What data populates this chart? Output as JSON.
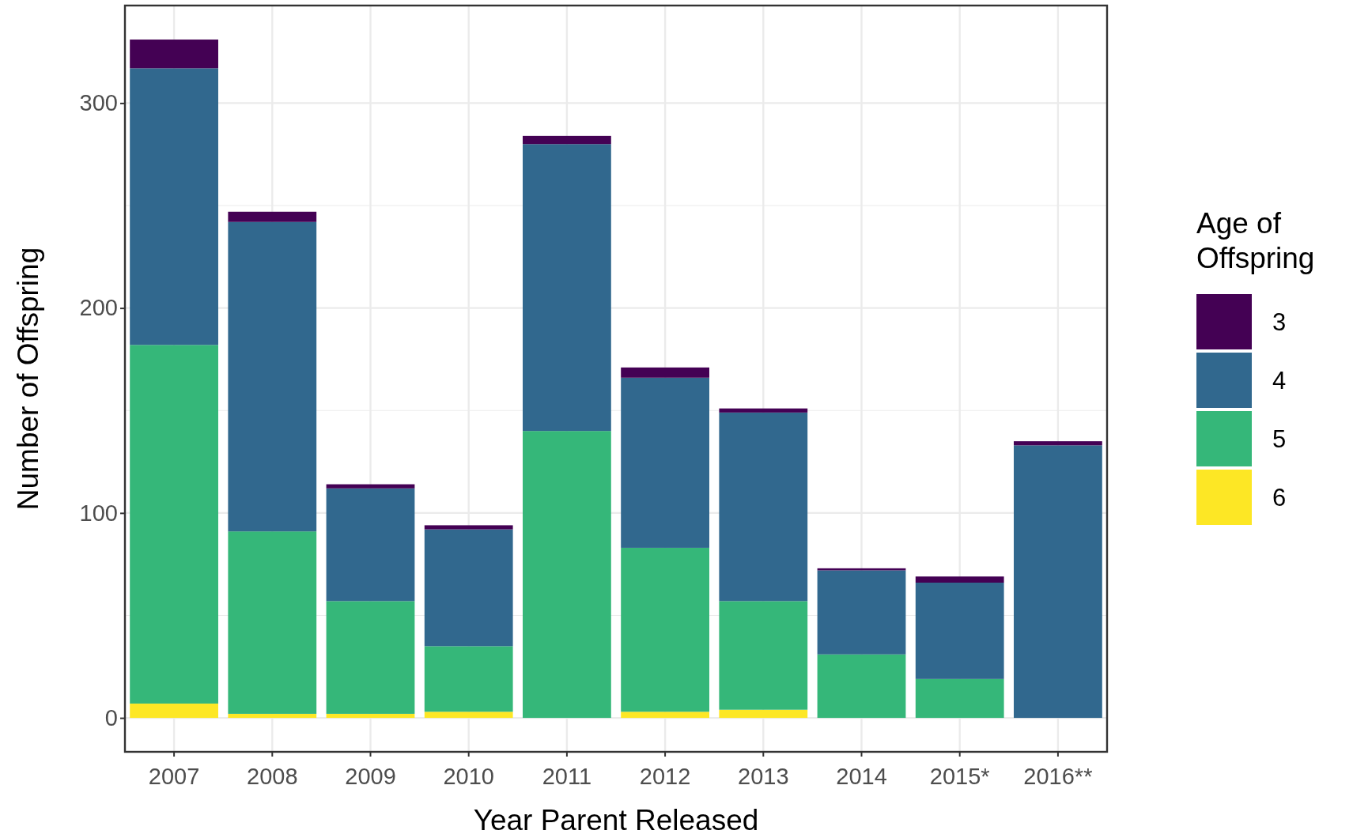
{
  "chart_data": {
    "type": "bar",
    "stacked": true,
    "xlabel": "Year Parent Released",
    "ylabel": "Number of Offspring",
    "legend_title": "Age of Offspring",
    "legend": "right",
    "categories": [
      "2007",
      "2008",
      "2009",
      "2010",
      "2011",
      "2012",
      "2013",
      "2014",
      "2015*",
      "2016**"
    ],
    "series": [
      {
        "name": "6",
        "color": "#fde725",
        "values": [
          7,
          2,
          2,
          3,
          0,
          3,
          4,
          0,
          0,
          0
        ]
      },
      {
        "name": "5",
        "color": "#35b779",
        "values": [
          175,
          89,
          55,
          32,
          140,
          80,
          53,
          31,
          19,
          0
        ]
      },
      {
        "name": "4",
        "color": "#31688e",
        "values": [
          135,
          151,
          55,
          57,
          140,
          83,
          92,
          41,
          47,
          133
        ]
      },
      {
        "name": "3",
        "color": "#440154",
        "values": [
          14,
          5,
          2,
          2,
          4,
          5,
          2,
          1,
          3,
          2
        ]
      }
    ],
    "ylim": [
      -16.55,
      347.6
    ],
    "yticks": [
      0,
      100,
      200,
      300
    ],
    "grid": true
  }
}
